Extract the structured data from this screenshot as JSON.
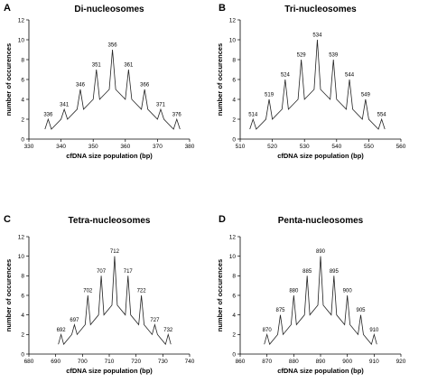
{
  "chart_data": [
    {
      "type": "line",
      "panel": "A",
      "title": "Di-nucleosomes",
      "xlabel": "cfDNA size population (bp)",
      "ylabel": "number of occurences",
      "xlim": [
        330,
        380
      ],
      "ylim": [
        0,
        12
      ],
      "xticks": [
        330,
        340,
        350,
        360,
        370,
        380
      ],
      "yticks": [
        0,
        2,
        4,
        6,
        8,
        10,
        12
      ],
      "grid": false,
      "points": [
        {
          "x": 335,
          "y": 1
        },
        {
          "x": 336,
          "y": 2
        },
        {
          "x": 337,
          "y": 1
        },
        {
          "x": 340,
          "y": 2
        },
        {
          "x": 341,
          "y": 3
        },
        {
          "x": 342,
          "y": 2
        },
        {
          "x": 345,
          "y": 3
        },
        {
          "x": 346,
          "y": 5
        },
        {
          "x": 347,
          "y": 3
        },
        {
          "x": 350,
          "y": 4
        },
        {
          "x": 351,
          "y": 7
        },
        {
          "x": 352,
          "y": 4
        },
        {
          "x": 355,
          "y": 5
        },
        {
          "x": 356,
          "y": 9
        },
        {
          "x": 357,
          "y": 5
        },
        {
          "x": 360,
          "y": 4
        },
        {
          "x": 361,
          "y": 7
        },
        {
          "x": 362,
          "y": 4
        },
        {
          "x": 365,
          "y": 3
        },
        {
          "x": 366,
          "y": 5
        },
        {
          "x": 367,
          "y": 3
        },
        {
          "x": 370,
          "y": 2
        },
        {
          "x": 371,
          "y": 3
        },
        {
          "x": 372,
          "y": 2
        },
        {
          "x": 375,
          "y": 1
        },
        {
          "x": 376,
          "y": 2
        },
        {
          "x": 377,
          "y": 1
        }
      ],
      "annotations": [
        {
          "x": 336,
          "y": 2,
          "text": "336"
        },
        {
          "x": 341,
          "y": 3,
          "text": "341"
        },
        {
          "x": 346,
          "y": 5,
          "text": "346"
        },
        {
          "x": 351,
          "y": 7,
          "text": "351"
        },
        {
          "x": 356,
          "y": 9,
          "text": "356"
        },
        {
          "x": 361,
          "y": 7,
          "text": "361"
        },
        {
          "x": 366,
          "y": 5,
          "text": "366"
        },
        {
          "x": 371,
          "y": 3,
          "text": "371"
        },
        {
          "x": 376,
          "y": 2,
          "text": "376"
        }
      ]
    },
    {
      "type": "line",
      "panel": "B",
      "title": "Tri-nucleosomes",
      "xlabel": "cfDNA size population (bp)",
      "ylabel": "number of occurences",
      "xlim": [
        510,
        560
      ],
      "ylim": [
        0,
        12
      ],
      "xticks": [
        510,
        520,
        530,
        540,
        550,
        560
      ],
      "yticks": [
        0,
        2,
        4,
        6,
        8,
        10,
        12
      ],
      "grid": false,
      "points": [
        {
          "x": 513,
          "y": 1
        },
        {
          "x": 514,
          "y": 2
        },
        {
          "x": 515,
          "y": 1
        },
        {
          "x": 518,
          "y": 2
        },
        {
          "x": 519,
          "y": 4
        },
        {
          "x": 520,
          "y": 2
        },
        {
          "x": 523,
          "y": 3
        },
        {
          "x": 524,
          "y": 6
        },
        {
          "x": 525,
          "y": 3
        },
        {
          "x": 528,
          "y": 4
        },
        {
          "x": 529,
          "y": 8
        },
        {
          "x": 530,
          "y": 4
        },
        {
          "x": 533,
          "y": 5
        },
        {
          "x": 534,
          "y": 10
        },
        {
          "x": 535,
          "y": 5
        },
        {
          "x": 538,
          "y": 4
        },
        {
          "x": 539,
          "y": 8
        },
        {
          "x": 540,
          "y": 4
        },
        {
          "x": 543,
          "y": 3
        },
        {
          "x": 544,
          "y": 6
        },
        {
          "x": 545,
          "y": 3
        },
        {
          "x": 548,
          "y": 2
        },
        {
          "x": 549,
          "y": 4
        },
        {
          "x": 550,
          "y": 2
        },
        {
          "x": 553,
          "y": 1
        },
        {
          "x": 554,
          "y": 2
        },
        {
          "x": 555,
          "y": 1
        }
      ],
      "annotations": [
        {
          "x": 514,
          "y": 2,
          "text": "514"
        },
        {
          "x": 519,
          "y": 4,
          "text": "519"
        },
        {
          "x": 524,
          "y": 6,
          "text": "524"
        },
        {
          "x": 529,
          "y": 8,
          "text": "529"
        },
        {
          "x": 534,
          "y": 10,
          "text": "534"
        },
        {
          "x": 539,
          "y": 8,
          "text": "539"
        },
        {
          "x": 544,
          "y": 6,
          "text": "544"
        },
        {
          "x": 549,
          "y": 4,
          "text": "549"
        },
        {
          "x": 554,
          "y": 2,
          "text": "554"
        }
      ]
    },
    {
      "type": "line",
      "panel": "C",
      "title": "Tetra-nucleosomes",
      "xlabel": "cfDNA size population (bp)",
      "ylabel": "number of occurences",
      "xlim": [
        680,
        740
      ],
      "ylim": [
        0,
        12
      ],
      "xticks": [
        680,
        690,
        700,
        710,
        720,
        730,
        740
      ],
      "yticks": [
        0,
        2,
        4,
        6,
        8,
        10,
        12
      ],
      "grid": false,
      "points": [
        {
          "x": 691,
          "y": 1
        },
        {
          "x": 692,
          "y": 2
        },
        {
          "x": 693,
          "y": 1
        },
        {
          "x": 696,
          "y": 2
        },
        {
          "x": 697,
          "y": 3
        },
        {
          "x": 698,
          "y": 2
        },
        {
          "x": 701,
          "y": 3
        },
        {
          "x": 702,
          "y": 6
        },
        {
          "x": 703,
          "y": 3
        },
        {
          "x": 706,
          "y": 4
        },
        {
          "x": 707,
          "y": 8
        },
        {
          "x": 708,
          "y": 4
        },
        {
          "x": 711,
          "y": 5
        },
        {
          "x": 712,
          "y": 10
        },
        {
          "x": 713,
          "y": 5
        },
        {
          "x": 716,
          "y": 4
        },
        {
          "x": 717,
          "y": 8
        },
        {
          "x": 718,
          "y": 4
        },
        {
          "x": 721,
          "y": 3
        },
        {
          "x": 722,
          "y": 6
        },
        {
          "x": 723,
          "y": 3
        },
        {
          "x": 726,
          "y": 2
        },
        {
          "x": 727,
          "y": 3
        },
        {
          "x": 728,
          "y": 2
        },
        {
          "x": 731,
          "y": 1
        },
        {
          "x": 732,
          "y": 2
        },
        {
          "x": 733,
          "y": 1
        }
      ],
      "annotations": [
        {
          "x": 692,
          "y": 2,
          "text": "692"
        },
        {
          "x": 697,
          "y": 3,
          "text": "697"
        },
        {
          "x": 702,
          "y": 6,
          "text": "702"
        },
        {
          "x": 707,
          "y": 8,
          "text": "707"
        },
        {
          "x": 712,
          "y": 10,
          "text": "712"
        },
        {
          "x": 717,
          "y": 8,
          "text": "717"
        },
        {
          "x": 722,
          "y": 6,
          "text": "722"
        },
        {
          "x": 727,
          "y": 3,
          "text": "727"
        },
        {
          "x": 732,
          "y": 2,
          "text": "732"
        }
      ]
    },
    {
      "type": "line",
      "panel": "D",
      "title": "Penta-nucleosomes",
      "xlabel": "cfDNA size population (bp)",
      "ylabel": "number of occurences",
      "xlim": [
        860,
        920
      ],
      "ylim": [
        0,
        12
      ],
      "xticks": [
        860,
        870,
        880,
        890,
        900,
        910,
        920
      ],
      "yticks": [
        0,
        2,
        4,
        6,
        8,
        10,
        12
      ],
      "grid": false,
      "points": [
        {
          "x": 869,
          "y": 1
        },
        {
          "x": 870,
          "y": 2
        },
        {
          "x": 871,
          "y": 1
        },
        {
          "x": 874,
          "y": 2
        },
        {
          "x": 875,
          "y": 4
        },
        {
          "x": 876,
          "y": 2
        },
        {
          "x": 879,
          "y": 3
        },
        {
          "x": 880,
          "y": 6
        },
        {
          "x": 881,
          "y": 3
        },
        {
          "x": 884,
          "y": 4
        },
        {
          "x": 885,
          "y": 8
        },
        {
          "x": 886,
          "y": 4
        },
        {
          "x": 889,
          "y": 5
        },
        {
          "x": 890,
          "y": 10
        },
        {
          "x": 891,
          "y": 5
        },
        {
          "x": 894,
          "y": 4
        },
        {
          "x": 895,
          "y": 8
        },
        {
          "x": 896,
          "y": 4
        },
        {
          "x": 899,
          "y": 3
        },
        {
          "x": 900,
          "y": 6
        },
        {
          "x": 901,
          "y": 3
        },
        {
          "x": 904,
          "y": 2
        },
        {
          "x": 905,
          "y": 4
        },
        {
          "x": 906,
          "y": 2
        },
        {
          "x": 909,
          "y": 1
        },
        {
          "x": 910,
          "y": 2
        },
        {
          "x": 911,
          "y": 1
        }
      ],
      "annotations": [
        {
          "x": 870,
          "y": 2,
          "text": "870"
        },
        {
          "x": 875,
          "y": 4,
          "text": "875"
        },
        {
          "x": 880,
          "y": 6,
          "text": "880"
        },
        {
          "x": 885,
          "y": 8,
          "text": "885"
        },
        {
          "x": 890,
          "y": 10,
          "text": "890"
        },
        {
          "x": 895,
          "y": 8,
          "text": "895"
        },
        {
          "x": 900,
          "y": 6,
          "text": "900"
        },
        {
          "x": 905,
          "y": 4,
          "text": "905"
        },
        {
          "x": 910,
          "y": 2,
          "text": "910"
        }
      ]
    }
  ]
}
